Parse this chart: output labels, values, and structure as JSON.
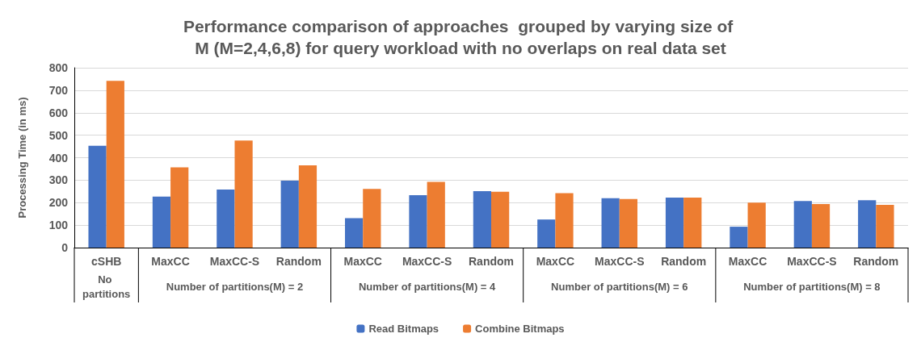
{
  "chart_data": {
    "type": "bar",
    "title": "Performance comparison of approaches  grouped by varying size of M (M=2,4,6,8) for query workload with no overlaps on real data set",
    "ylabel": "Processing Time (in ms)",
    "categories": [
      "cSHB",
      "MaxCC",
      "MaxCC-S",
      "Random",
      "MaxCC",
      "MaxCC-S",
      "Random",
      "MaxCC",
      "MaxCC-S",
      "Random",
      "MaxCC",
      "MaxCC-S",
      "Random"
    ],
    "series": [
      {
        "name": "Read Bitmaps",
        "color": "#4472c4",
        "values": [
          453,
          227,
          258,
          298,
          131,
          233,
          251,
          125,
          220,
          222,
          93,
          207,
          211
        ]
      },
      {
        "name": "Combine Bitmaps",
        "color": "#ed7d31",
        "values": [
          742,
          357,
          476,
          366,
          261,
          292,
          248,
          242,
          216,
          222,
          200,
          194,
          190
        ]
      }
    ],
    "annotations": [
      "No partitions",
      "Number of partitions(M) = 2",
      "Number of partitions(M) = 4",
      "Number of partitions(M) = 6",
      "Number of partitions(M) = 8"
    ],
    "ylim": [
      0,
      800
    ],
    "yticks": [
      0,
      100,
      200,
      300,
      400,
      500,
      600,
      700,
      800
    ],
    "grid": "y",
    "legend": "bottom"
  }
}
